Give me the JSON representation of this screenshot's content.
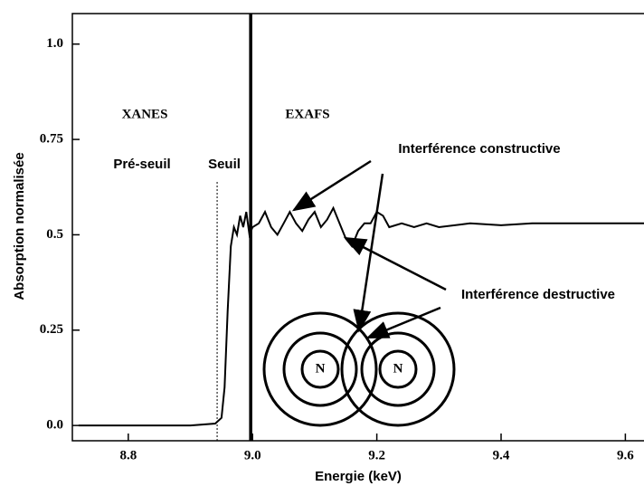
{
  "chart_data": {
    "type": "line",
    "xlabel": "Energie (keV)",
    "ylabel": "Absorption normalisée",
    "x": [
      8.72,
      8.9,
      8.94,
      8.95,
      8.955,
      8.96,
      8.965,
      8.97,
      8.975,
      8.98,
      8.985,
      8.99,
      8.995,
      9.0,
      9.01,
      9.02,
      9.03,
      9.04,
      9.05,
      9.06,
      9.07,
      9.08,
      9.09,
      9.1,
      9.11,
      9.12,
      9.13,
      9.14,
      9.15,
      9.16,
      9.17,
      9.18,
      9.19,
      9.2,
      9.21,
      9.22,
      9.24,
      9.26,
      9.28,
      9.3,
      9.35,
      9.4,
      9.45,
      9.5,
      9.55,
      9.6,
      9.63
    ],
    "values": [
      0.0,
      0.0,
      0.005,
      0.02,
      0.1,
      0.3,
      0.47,
      0.52,
      0.5,
      0.55,
      0.52,
      0.56,
      0.5,
      0.52,
      0.53,
      0.56,
      0.52,
      0.5,
      0.53,
      0.56,
      0.53,
      0.51,
      0.54,
      0.56,
      0.52,
      0.54,
      0.57,
      0.53,
      0.49,
      0.47,
      0.51,
      0.53,
      0.53,
      0.56,
      0.55,
      0.52,
      0.53,
      0.52,
      0.53,
      0.52,
      0.53,
      0.525,
      0.53,
      0.53,
      0.53,
      0.53,
      0.53
    ],
    "color": "#000000",
    "xlim": [
      8.71,
      9.63
    ],
    "ylim": [
      -0.04,
      1.08
    ],
    "xticks": [
      8.8,
      {
        "value": 9.0,
        "label": "9.0"
      },
      9.2,
      9.4,
      9.6
    ],
    "yticks": [
      {
        "value": 0,
        "label": "0.0"
      },
      0.25,
      0.5,
      0.75,
      {
        "value": 1,
        "label": "1.0"
      }
    ],
    "edge_x": 8.997,
    "threshold_line": [
      8.943,
      0.64
    ],
    "annotations": [
      "XANES",
      "EXAFS",
      "Pré-seuil",
      "Seuil",
      "Interférence constructive",
      "Interférence destructive"
    ],
    "circle_labels": [
      "N",
      "N"
    ]
  }
}
